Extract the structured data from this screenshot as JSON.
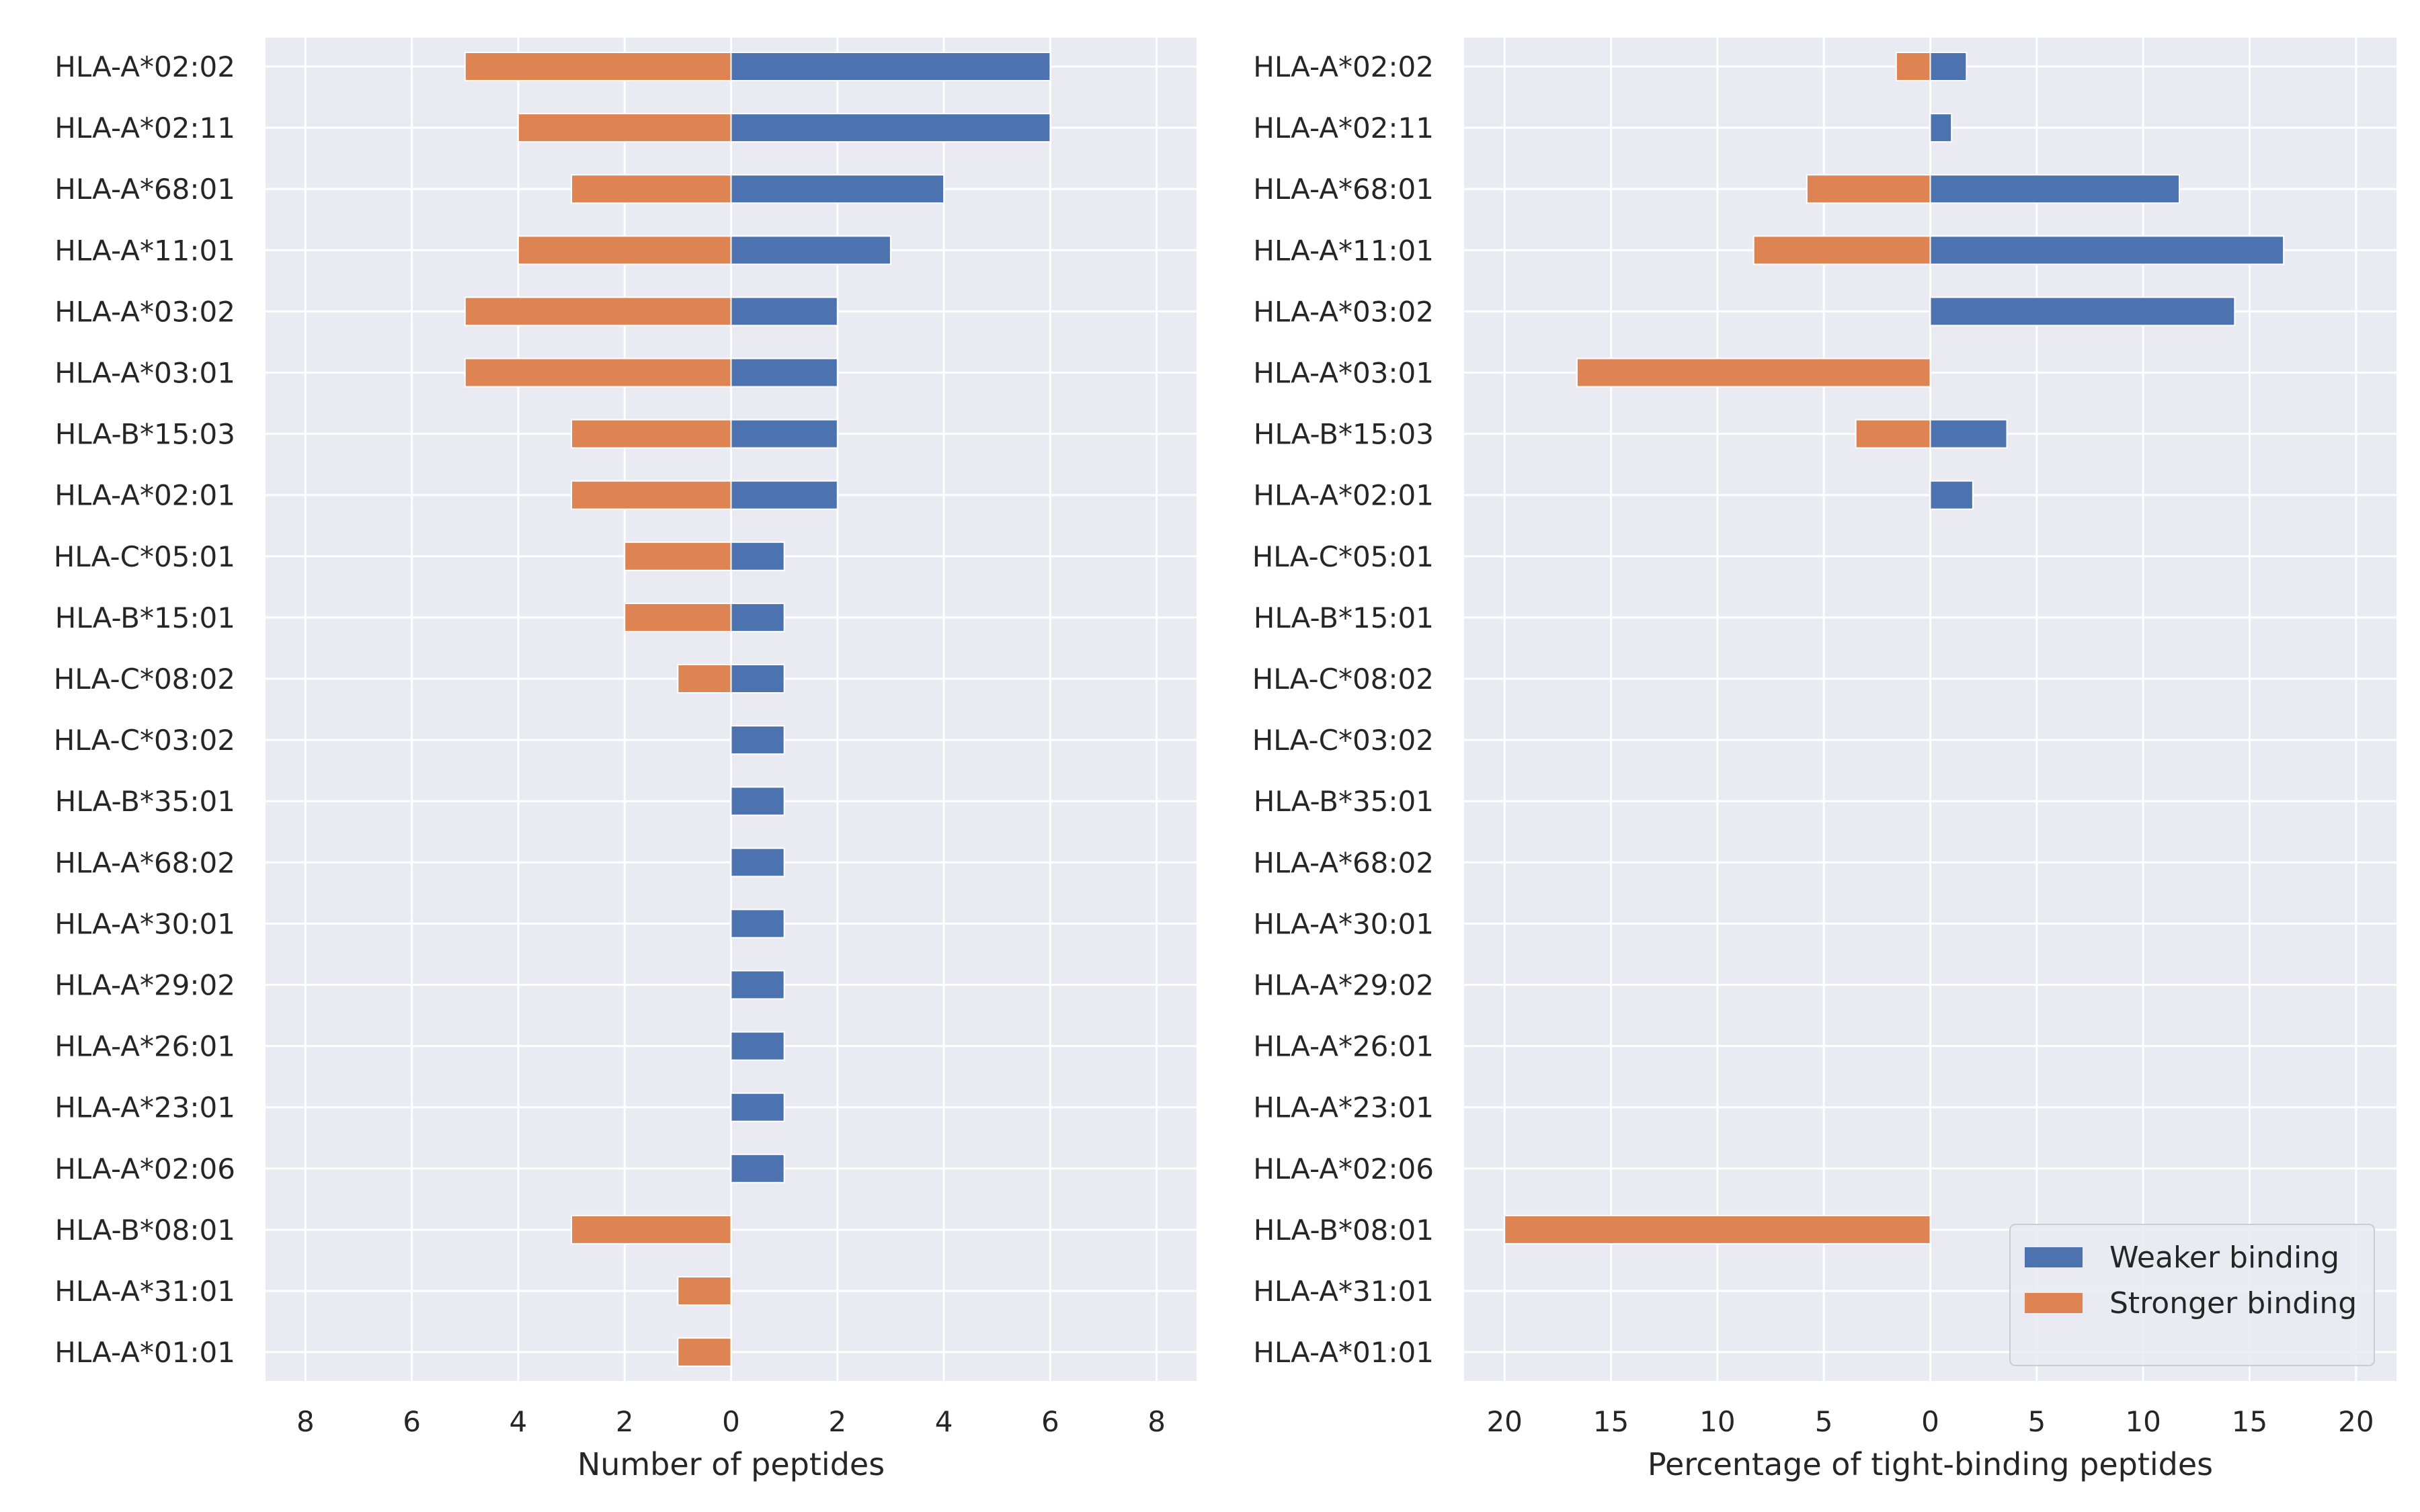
{
  "chart_data": [
    {
      "type": "bar",
      "orientation": "horizontal-diverging",
      "categories": [
        "HLA-A*02:02",
        "HLA-A*02:11",
        "HLA-A*68:01",
        "HLA-A*11:01",
        "HLA-A*03:02",
        "HLA-A*03:01",
        "HLA-B*15:03",
        "HLA-A*02:01",
        "HLA-C*05:01",
        "HLA-B*15:01",
        "HLA-C*08:02",
        "HLA-C*03:02",
        "HLA-B*35:01",
        "HLA-A*68:02",
        "HLA-A*30:01",
        "HLA-A*29:02",
        "HLA-A*26:01",
        "HLA-A*23:01",
        "HLA-A*02:06",
        "HLA-B*08:01",
        "HLA-A*31:01",
        "HLA-A*01:01"
      ],
      "series": [
        {
          "name": "Weaker binding",
          "color": "#4c72b0",
          "values": [
            6,
            6,
            4,
            3,
            2,
            2,
            2,
            2,
            1,
            1,
            1,
            1,
            1,
            1,
            1,
            1,
            1,
            1,
            1,
            0,
            0,
            0
          ]
        },
        {
          "name": "Stronger binding",
          "color": "#dd8452",
          "values": [
            5,
            4,
            3,
            4,
            5,
            5,
            3,
            3,
            2,
            2,
            1,
            0,
            0,
            0,
            0,
            0,
            0,
            0,
            0,
            3,
            1,
            1
          ]
        }
      ],
      "xlabel": "Number of peptides",
      "xlim": [
        -8.75,
        8.75
      ],
      "xticks": [
        -8,
        -6,
        -4,
        -2,
        0,
        2,
        4,
        6,
        8
      ],
      "xtick_labels": [
        "8",
        "6",
        "4",
        "2",
        "0",
        "2",
        "4",
        "6",
        "8"
      ],
      "grid": true
    },
    {
      "type": "bar",
      "orientation": "horizontal-diverging",
      "categories": [
        "HLA-A*02:02",
        "HLA-A*02:11",
        "HLA-A*68:01",
        "HLA-A*11:01",
        "HLA-A*03:02",
        "HLA-A*03:01",
        "HLA-B*15:03",
        "HLA-A*02:01",
        "HLA-C*05:01",
        "HLA-B*15:01",
        "HLA-C*08:02",
        "HLA-C*03:02",
        "HLA-B*35:01",
        "HLA-A*68:02",
        "HLA-A*30:01",
        "HLA-A*29:02",
        "HLA-A*26:01",
        "HLA-A*23:01",
        "HLA-A*02:06",
        "HLA-B*08:01",
        "HLA-A*31:01",
        "HLA-A*01:01"
      ],
      "series": [
        {
          "name": "Weaker binding",
          "color": "#4c72b0",
          "values": [
            1.7,
            1.0,
            11.7,
            16.6,
            14.3,
            0,
            3.6,
            2.0,
            0,
            0,
            0,
            0,
            0,
            0,
            0,
            0,
            0,
            0,
            0,
            0,
            0,
            0
          ]
        },
        {
          "name": "Stronger binding",
          "color": "#dd8452",
          "values": [
            1.6,
            0,
            5.8,
            8.3,
            0,
            16.6,
            3.5,
            0,
            0,
            0,
            0,
            0,
            0,
            0,
            0,
            0,
            0,
            0,
            0,
            20.0,
            0,
            0
          ]
        }
      ],
      "xlabel": "Percentage of tight-binding peptides",
      "xlim": [
        -21.9,
        21.9
      ],
      "xticks": [
        -20,
        -15,
        -10,
        -5,
        0,
        5,
        10,
        15,
        20
      ],
      "xtick_labels": [
        "20",
        "15",
        "10",
        "5",
        "0",
        "5",
        "10",
        "15",
        "20"
      ],
      "grid": true,
      "legend": {
        "placement": "lower-right",
        "entries": [
          "Weaker binding",
          "Stronger binding"
        ]
      }
    }
  ],
  "style": {
    "background": "#eaeaf2",
    "grid_color": "#ffffff",
    "text_color": "#262626"
  }
}
